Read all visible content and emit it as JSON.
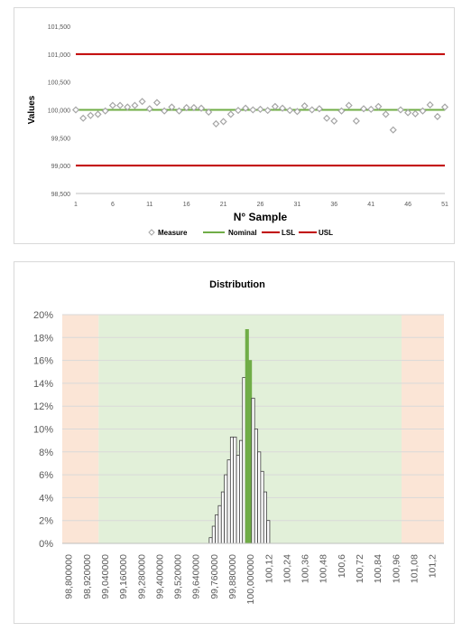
{
  "chart_data": [
    {
      "type": "line",
      "xlabel": "N° Sample",
      "ylabel": "Values",
      "ylim": [
        98500,
        101500
      ],
      "yticks": [
        "98,500",
        "99,000",
        "99,500",
        "100,000",
        "100,500",
        "101,000",
        "101,500"
      ],
      "ytick_values": [
        98500,
        99000,
        99500,
        100000,
        100500,
        101000,
        101500
      ],
      "xticks": [
        "1",
        "6",
        "11",
        "16",
        "21",
        "26",
        "31",
        "36",
        "41",
        "46",
        "51"
      ],
      "xlim": [
        1,
        51
      ],
      "legend": [
        "Measure",
        "Nominal",
        "LSL",
        "USL"
      ],
      "legend_position": "bottom",
      "colors": {
        "measure": "#a6a6a6",
        "nominal": "#70ad47",
        "limit": "#c00000"
      },
      "nominal": 100000,
      "lsl": 99000,
      "usl": 101000,
      "series": [
        {
          "name": "Measure",
          "x": [
            1,
            2,
            3,
            4,
            5,
            6,
            7,
            8,
            9,
            10,
            11,
            12,
            13,
            14,
            15,
            16,
            17,
            18,
            19,
            20,
            21,
            22,
            23,
            24,
            25,
            26,
            27,
            28,
            29,
            30,
            31,
            32,
            33,
            34,
            35,
            36,
            37,
            38,
            39,
            40,
            41,
            42,
            43,
            44,
            45,
            46,
            47,
            48,
            49,
            50,
            51
          ],
          "values": [
            100000,
            99850,
            99900,
            99920,
            99980,
            100080,
            100080,
            100050,
            100080,
            100150,
            100020,
            100130,
            99980,
            100050,
            99980,
            100040,
            100040,
            100030,
            99960,
            99750,
            99790,
            99920,
            99990,
            100030,
            100000,
            100010,
            99990,
            100060,
            100030,
            99990,
            99970,
            100070,
            100000,
            100020,
            99850,
            99800,
            99980,
            100080,
            99800,
            100020,
            100010,
            100060,
            99920,
            99640,
            100000,
            99950,
            99930,
            99980,
            100090,
            99880,
            100050
          ]
        }
      ]
    },
    {
      "type": "bar",
      "title": "Distribution",
      "ylim": [
        0,
        20
      ],
      "yticks": [
        "0%",
        "2%",
        "4%",
        "6%",
        "8%",
        "10%",
        "12%",
        "14%",
        "16%",
        "18%",
        "20%"
      ],
      "ytick_values": [
        0,
        2,
        4,
        6,
        8,
        10,
        12,
        14,
        16,
        18,
        20
      ],
      "x_range": [
        98.76,
        101.28
      ],
      "xticks": [
        "98,800000",
        "98,920000",
        "99,040000",
        "99,160000",
        "99,280000",
        "99,400000",
        "99,520000",
        "99,640000",
        "99,760000",
        "99,880000",
        "100,000000",
        "100,12",
        "100,24",
        "100,36",
        "100,48",
        "100,6",
        "100,72",
        "100,84",
        "100,96",
        "101,08",
        "101,2"
      ],
      "xtick_values": [
        98.8,
        98.92,
        99.04,
        99.16,
        99.28,
        99.4,
        99.52,
        99.64,
        99.76,
        99.88,
        100.0,
        100.12,
        100.24,
        100.36,
        100.48,
        100.6,
        100.72,
        100.84,
        100.96,
        101.08,
        101.2
      ],
      "out_of_spec_regions": [
        [
          98.76,
          99.0
        ],
        [
          101.0,
          101.28
        ]
      ],
      "in_spec_region": [
        99.0,
        101.0
      ],
      "colors": {
        "bar_fill": "#ffffff",
        "bar_edge": "#404040",
        "nominal_bar": "#70ad47",
        "out_zone": "#fbe5d6",
        "in_zone": "#e2f0d9",
        "grid": "#d9d9d9"
      },
      "bars": [
        {
          "x": 99.74,
          "value": 0.5
        },
        {
          "x": 99.76,
          "value": 1.5
        },
        {
          "x": 99.78,
          "value": 2.5
        },
        {
          "x": 99.8,
          "value": 3.3
        },
        {
          "x": 99.82,
          "value": 4.5
        },
        {
          "x": 99.84,
          "value": 6.0
        },
        {
          "x": 99.86,
          "value": 7.3
        },
        {
          "x": 99.88,
          "value": 9.3
        },
        {
          "x": 99.9,
          "value": 9.3
        },
        {
          "x": 99.92,
          "value": 7.7
        },
        {
          "x": 99.94,
          "value": 9.0
        },
        {
          "x": 99.96,
          "value": 14.5
        },
        {
          "x": 99.98,
          "value": 18.7
        },
        {
          "x": 100.0,
          "value": 16.0
        },
        {
          "x": 100.02,
          "value": 12.7
        },
        {
          "x": 100.04,
          "value": 10.0
        },
        {
          "x": 100.06,
          "value": 8.0
        },
        {
          "x": 100.08,
          "value": 6.3
        },
        {
          "x": 100.1,
          "value": 4.5
        },
        {
          "x": 100.12,
          "value": 2.0
        }
      ],
      "nominal_bars": [
        99.98,
        100.0
      ]
    }
  ]
}
